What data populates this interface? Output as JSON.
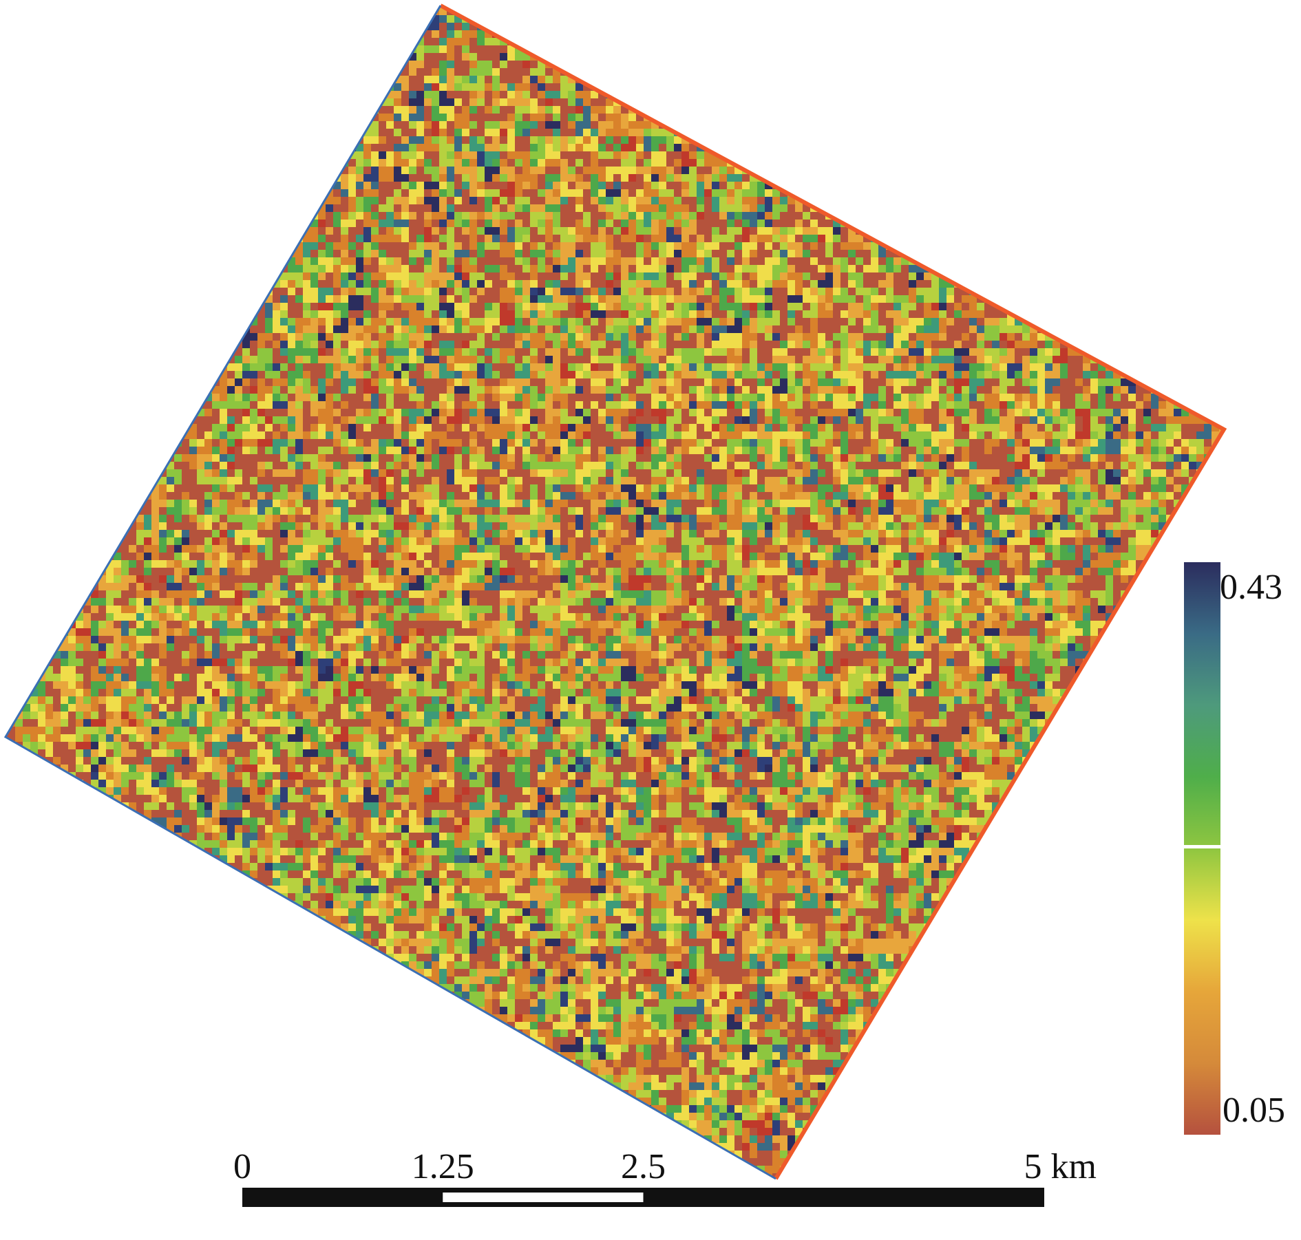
{
  "map": {
    "raster": {
      "palette": [
        "#b5533c",
        "#c0392b",
        "#d9822b",
        "#e8a63c",
        "#f0dd4a",
        "#b7d13f",
        "#8dc63f",
        "#4ea84a",
        "#3d9a7a",
        "#3a6b85",
        "#2e3f78",
        "#2b2d5e"
      ],
      "palette_weights": [
        26,
        2,
        14,
        12,
        10,
        10,
        9,
        6,
        4,
        3,
        2,
        2
      ],
      "edge_color": "#ef5a2a",
      "outline_color": "#3a6fb5"
    },
    "colorbar": {
      "max_label": "0.43",
      "min_label": "0.05",
      "stops": [
        "#2b2d5e",
        "#3a6b85",
        "#4e9a7c",
        "#4fae4a",
        "#8fc640",
        "#eee24a",
        "#e6a63a",
        "#d58a3a",
        "#b5513e"
      ]
    },
    "scalebar": {
      "ticks": [
        {
          "label": "0",
          "value": 0
        },
        {
          "label": "1.25",
          "value": 1.25
        },
        {
          "label": "2.5",
          "value": 2.5
        },
        {
          "label": "5 km",
          "value": 5
        }
      ],
      "max_value": 5,
      "segments": [
        {
          "from": 0,
          "to": 1.25,
          "color": "#111111"
        },
        {
          "from": 1.25,
          "to": 2.5,
          "color": "#ffffff"
        },
        {
          "from": 2.5,
          "to": 5,
          "color": "#111111"
        }
      ]
    }
  }
}
